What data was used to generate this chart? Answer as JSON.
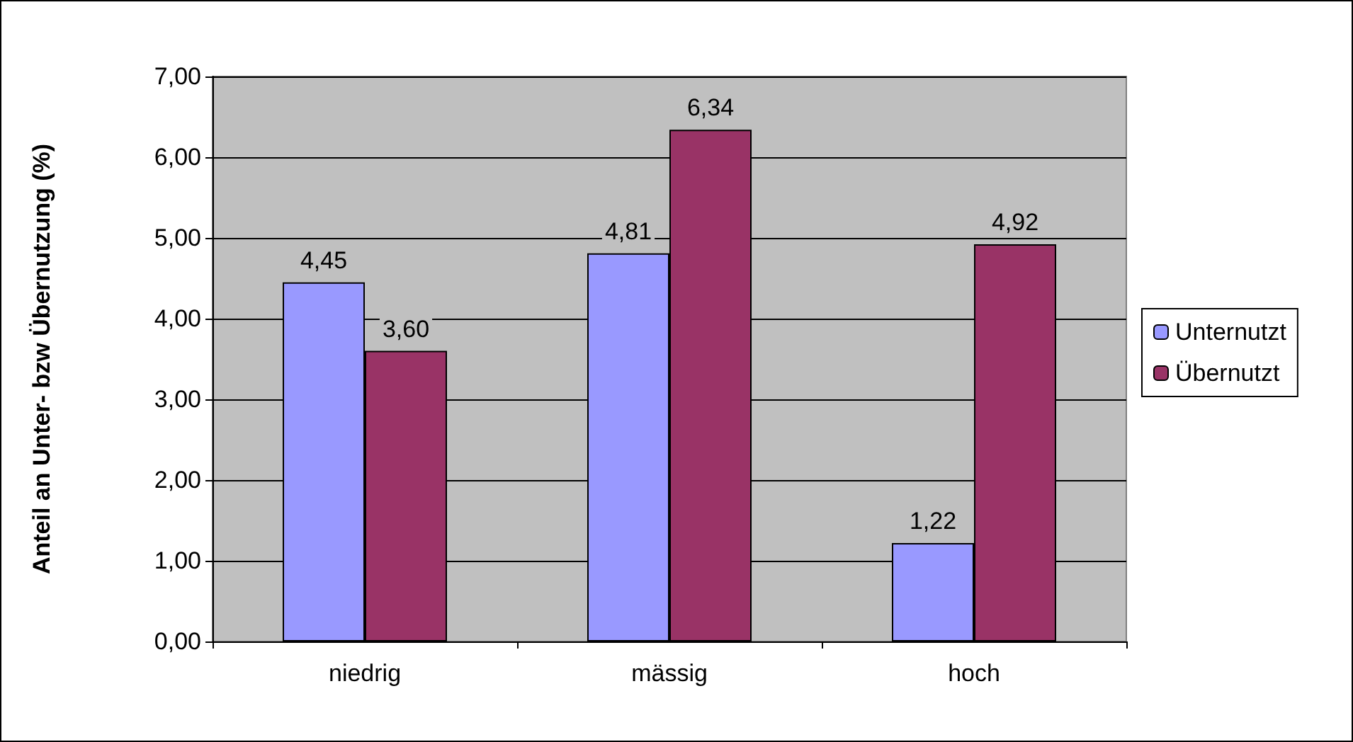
{
  "chart_data": {
    "type": "bar",
    "ylabel": "Anteil an Unter- bzw Übernutzung (%)",
    "categories": [
      "niedrig",
      "mässig",
      "hoch"
    ],
    "series": [
      {
        "name": "Unternutzt",
        "color": "#9999ff",
        "values": [
          4.45,
          4.81,
          1.22
        ],
        "value_labels": [
          "4,45",
          "4,81",
          "1,22"
        ]
      },
      {
        "name": "Übernutzt",
        "color": "#993366",
        "values": [
          3.6,
          6.34,
          4.92
        ],
        "value_labels": [
          "3,60",
          "6,34",
          "4,92"
        ]
      }
    ],
    "ylim": [
      0,
      7
    ],
    "yticks": [
      {
        "value": 0,
        "label": "0,00"
      },
      {
        "value": 1,
        "label": "1,00"
      },
      {
        "value": 2,
        "label": "2,00"
      },
      {
        "value": 3,
        "label": "3,00"
      },
      {
        "value": 4,
        "label": "4,00"
      },
      {
        "value": 5,
        "label": "5,00"
      },
      {
        "value": 6,
        "label": "6,00"
      },
      {
        "value": 7,
        "label": "7,00"
      }
    ],
    "grid": "y",
    "legend": "right"
  }
}
